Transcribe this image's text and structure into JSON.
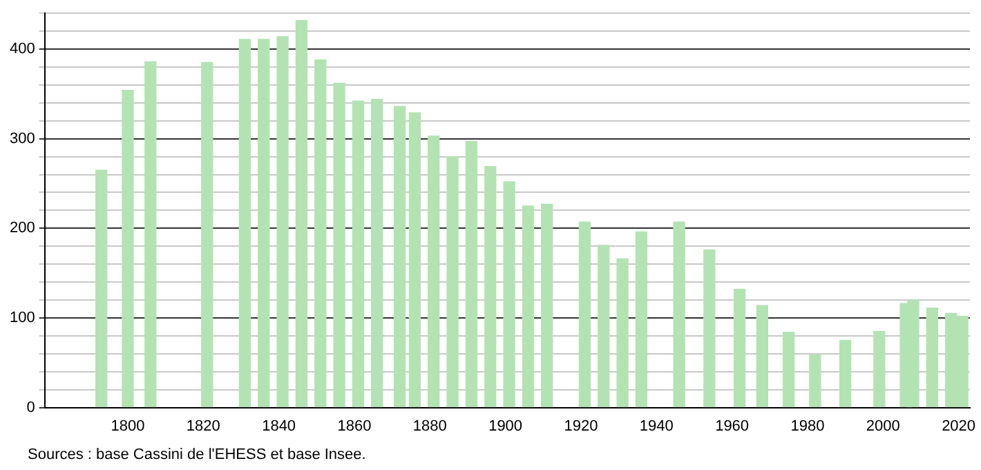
{
  "chart_data": {
    "type": "bar",
    "x": [
      1793,
      1800,
      1806,
      1821,
      1831,
      1836,
      1841,
      1846,
      1851,
      1856,
      1861,
      1866,
      1872,
      1876,
      1881,
      1886,
      1891,
      1896,
      1901,
      1906,
      1911,
      1921,
      1926,
      1931,
      1936,
      1946,
      1954,
      1962,
      1968,
      1975,
      1982,
      1990,
      1999,
      2006,
      2008,
      2013,
      2018,
      2021
    ],
    "values": [
      265,
      354,
      386,
      385,
      411,
      411,
      414,
      432,
      388,
      362,
      342,
      344,
      336,
      329,
      303,
      280,
      297,
      269,
      252,
      225,
      227,
      207,
      181,
      166,
      196,
      207,
      176,
      132,
      114,
      84,
      59,
      75,
      85,
      116,
      120,
      111,
      105,
      102
    ],
    "color": "#b3e3b3",
    "xlim": [
      1778,
      2023
    ],
    "xticks": [
      1800,
      1820,
      1840,
      1860,
      1880,
      1900,
      1920,
      1940,
      1960,
      1980,
      2000,
      2020
    ],
    "ylim": [
      0,
      440
    ],
    "yticks": [
      0,
      {
        "value": 20,
        "label": null
      },
      {
        "value": 40,
        "label": null
      },
      {
        "value": 60,
        "label": null
      },
      {
        "value": 80,
        "label": null
      },
      100,
      {
        "value": 120,
        "label": null
      },
      {
        "value": 140,
        "label": null
      },
      {
        "value": 160,
        "label": null
      },
      {
        "value": 180,
        "label": null
      },
      200,
      {
        "value": 220,
        "label": null
      },
      {
        "value": 240,
        "label": null
      },
      {
        "value": 260,
        "label": null
      },
      {
        "value": 280,
        "label": null
      },
      300,
      {
        "value": 320,
        "label": null
      },
      {
        "value": 340,
        "label": null
      },
      {
        "value": 360,
        "label": null
      },
      {
        "value": 380,
        "label": null
      },
      400,
      {
        "value": 420,
        "label": null
      },
      {
        "value": 440,
        "label": null
      }
    ],
    "grid": "y",
    "annotations": [
      "Sources : base Cassini de l'EHESS et base Insee."
    ]
  }
}
